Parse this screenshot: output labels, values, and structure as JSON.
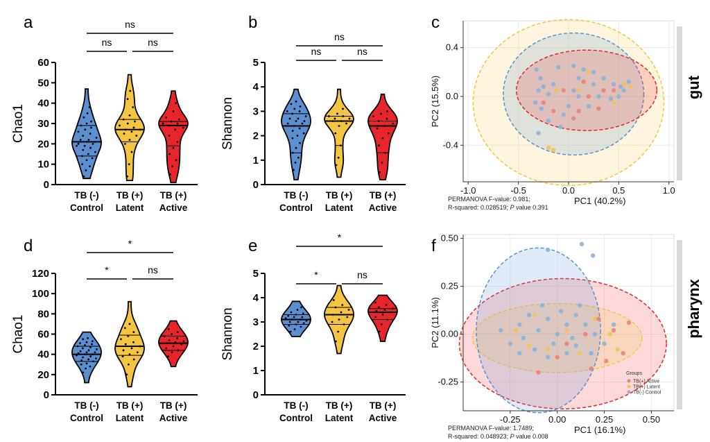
{
  "colors": {
    "control": "#5b8fd0",
    "latent": "#f4c542",
    "active": "#e8252a"
  },
  "chart_data": [
    {
      "panel": "a",
      "type": "violin",
      "ylabel": "Chao1",
      "ylim": [
        0,
        60
      ],
      "yticks": [
        "0",
        "10",
        "20",
        "30",
        "40",
        "50",
        "60"
      ],
      "categories": [
        {
          "line1": "TB (-)",
          "line2": "Control"
        },
        {
          "line1": "TB (+)",
          "line2": "Latent"
        },
        {
          "line1": "TB (+)",
          "line2": "Active"
        }
      ],
      "groups": [
        {
          "q1": 14,
          "median": 21,
          "q3": 29,
          "min": 3,
          "max": 47,
          "points": [
            4,
            7,
            9,
            10,
            12,
            13,
            14,
            15,
            16,
            17,
            18,
            19,
            19,
            20,
            20,
            21,
            21,
            22,
            22,
            23,
            24,
            25,
            26,
            27,
            28,
            29,
            30,
            31,
            33,
            35,
            38
          ]
        },
        {
          "q1": 21,
          "median": 27,
          "q3": 32,
          "min": 2,
          "max": 54,
          "points": [
            4,
            10,
            16,
            20,
            22,
            24,
            25,
            26,
            27,
            27,
            28,
            29,
            30,
            31,
            32,
            34,
            38,
            42,
            46
          ]
        },
        {
          "q1": 19,
          "median": 29,
          "q3": 31,
          "min": 1,
          "max": 46,
          "points": [
            5,
            9,
            12,
            15,
            18,
            21,
            24,
            27,
            28,
            29,
            30,
            30,
            31,
            32,
            33,
            36,
            40
          ]
        }
      ],
      "comparisons": [
        {
          "from": 0,
          "to": 1,
          "label": "ns",
          "level": 0
        },
        {
          "from": 1,
          "to": 2,
          "label": "ns",
          "level": 0
        },
        {
          "from": 0,
          "to": 2,
          "label": "ns",
          "level": 1
        }
      ]
    },
    {
      "panel": "b",
      "type": "violin",
      "ylabel": "Shannon",
      "ylim": [
        0,
        5
      ],
      "yticks": [
        "0",
        "1",
        "2",
        "3",
        "4",
        "5"
      ],
      "categories": [
        {
          "line1": "TB (-)",
          "line2": "Control"
        },
        {
          "line1": "TB (+)",
          "line2": "Latent"
        },
        {
          "line1": "TB (+)",
          "line2": "Active"
        }
      ],
      "groups": [
        {
          "q1": 1.3,
          "median": 2.4,
          "q3": 2.9,
          "min": 0.2,
          "max": 3.9,
          "points": [
            0.6,
            0.9,
            1.1,
            1.3,
            1.5,
            1.7,
            1.9,
            2.0,
            2.1,
            2.2,
            2.3,
            2.4,
            2.4,
            2.5,
            2.5,
            2.6,
            2.6,
            2.7,
            2.7,
            2.8,
            2.9,
            3.0,
            3.0,
            3.1,
            3.2,
            3.3,
            3.4
          ]
        },
        {
          "q1": 1.6,
          "median": 2.6,
          "q3": 2.8,
          "min": 0.3,
          "max": 3.9,
          "points": [
            0.8,
            1.1,
            1.6,
            2.1,
            2.4,
            2.5,
            2.6,
            2.6,
            2.7,
            2.7,
            2.8,
            2.8,
            2.9,
            3.1
          ]
        },
        {
          "q1": 1.3,
          "median": 2.4,
          "q3": 2.6,
          "min": 0.2,
          "max": 3.7,
          "points": [
            0.5,
            0.9,
            1.3,
            1.6,
            1.9,
            2.1,
            2.3,
            2.4,
            2.5,
            2.6,
            2.7,
            2.8,
            2.9,
            3.0
          ]
        }
      ],
      "comparisons": [
        {
          "from": 0,
          "to": 1,
          "label": "ns",
          "level": 0
        },
        {
          "from": 1,
          "to": 2,
          "label": "ns",
          "level": 0
        },
        {
          "from": 0,
          "to": 2,
          "label": "ns",
          "level": 1
        }
      ]
    },
    {
      "panel": "c",
      "type": "scatter",
      "xlabel": "PC1 (40.2%)",
      "ylabel": "PC2 (15.5%)",
      "xlim": [
        -1.05,
        1.05
      ],
      "ylim": [
        -0.7,
        0.62
      ],
      "xticks": [
        -1.0,
        -0.5,
        0.0,
        0.5,
        1.0
      ],
      "xtick_labels": [
        "-1.0",
        "-0.5",
        "0.0",
        "0.5",
        "1.0"
      ],
      "yticks": [
        -0.4,
        0.0,
        0.4
      ],
      "ytick_labels": [
        "-0.4",
        "0.0",
        "0.4"
      ],
      "side_label": "gut",
      "stats_line1": "PERMANOVA F-value: 0.981;",
      "stats_line2_pre": "R-squared: 0.028519; ",
      "stats_p": "P",
      "stats_line2_post": " value 0.391",
      "ellipses": [
        {
          "group": "latent",
          "cx": 0.0,
          "cy": -0.05,
          "rx": 0.95,
          "ry": 0.68
        },
        {
          "group": "control",
          "cx": 0.05,
          "cy": 0.02,
          "rx": 0.7,
          "ry": 0.5
        },
        {
          "group": "active",
          "cx": 0.18,
          "cy": 0.05,
          "rx": 0.7,
          "ry": 0.33
        }
      ],
      "points": {
        "control": [
          [
            -0.32,
            0.22
          ],
          [
            -0.28,
            0.15
          ],
          [
            -0.25,
            0.08
          ],
          [
            -0.3,
            0.05
          ],
          [
            -0.33,
            -0.05
          ],
          [
            -0.27,
            -0.1
          ],
          [
            -0.2,
            -0.2
          ],
          [
            -0.1,
            0.24
          ],
          [
            0.05,
            0.25
          ],
          [
            0.15,
            0.22
          ],
          [
            0.25,
            0.2
          ],
          [
            0.35,
            0.15
          ],
          [
            0.45,
            0.1
          ],
          [
            0.52,
            0.08
          ],
          [
            0.55,
            0.05
          ],
          [
            0.6,
            0.12
          ],
          [
            0.05,
            0.05
          ],
          [
            0.1,
            0.0
          ],
          [
            0.0,
            -0.08
          ],
          [
            -0.05,
            -0.15
          ],
          [
            0.2,
            -0.08
          ],
          [
            0.3,
            0.0
          ],
          [
            0.42,
            -0.02
          ],
          [
            -0.15,
            0.1
          ],
          [
            -0.2,
            0.02
          ],
          [
            0.1,
            0.15
          ],
          [
            -0.08,
            -0.25
          ],
          [
            -0.3,
            -0.3
          ],
          [
            0.25,
            0.1
          ],
          [
            0.5,
            0.0
          ]
        ],
        "latent": [
          [
            -0.2,
            -0.42
          ],
          [
            -0.15,
            -0.44
          ],
          [
            -0.12,
            0.05
          ],
          [
            0.1,
            0.05
          ],
          [
            0.55,
            0.1
          ],
          [
            0.45,
            -0.05
          ],
          [
            0.2,
            0.2
          ],
          [
            0.62,
            0.08
          ]
        ],
        "active": [
          [
            -0.25,
            -0.05
          ],
          [
            0.1,
            -0.12
          ],
          [
            -0.05,
            0.05
          ],
          [
            0.2,
            0.0
          ],
          [
            0.3,
            -0.1
          ],
          [
            0.15,
            0.12
          ],
          [
            -0.15,
            -0.12
          ],
          [
            0.05,
            -0.18
          ],
          [
            0.45,
            0.05
          ],
          [
            0.35,
            0.05
          ]
        ]
      }
    },
    {
      "panel": "d",
      "type": "violin",
      "ylabel": "Chao1",
      "ylim": [
        0,
        120
      ],
      "yticks": [
        "0",
        "20",
        "40",
        "60",
        "80",
        "100",
        "120"
      ],
      "categories": [
        {
          "line1": "TB (-)",
          "line2": "Control"
        },
        {
          "line1": "TB (+)",
          "line2": "Latent"
        },
        {
          "line1": "TB (+)",
          "line2": "Active"
        }
      ],
      "groups": [
        {
          "q1": 33,
          "median": 40,
          "q3": 48,
          "min": 12,
          "max": 62,
          "points": [
            22,
            26,
            28,
            30,
            31,
            33,
            34,
            35,
            36,
            37,
            38,
            39,
            40,
            40,
            41,
            42,
            42,
            43,
            44,
            45,
            46,
            47,
            48,
            49,
            50,
            51,
            52,
            53,
            55,
            56
          ]
        },
        {
          "q1": 39,
          "median": 48,
          "q3": 59,
          "min": 8,
          "max": 92,
          "points": [
            20,
            30,
            35,
            38,
            40,
            42,
            44,
            46,
            48,
            50,
            52,
            55,
            58,
            62,
            66,
            70
          ]
        },
        {
          "q1": 44,
          "median": 51,
          "q3": 58,
          "min": 28,
          "max": 73,
          "points": [
            38,
            42,
            44,
            46,
            48,
            50,
            51,
            52,
            53,
            54,
            56,
            58,
            60,
            62,
            65
          ]
        }
      ],
      "comparisons": [
        {
          "from": 0,
          "to": 1,
          "label": "*",
          "level": 0
        },
        {
          "from": 1,
          "to": 2,
          "label": "ns",
          "level": 0
        },
        {
          "from": 0,
          "to": 2,
          "label": "*",
          "level": 1
        }
      ]
    },
    {
      "panel": "e",
      "type": "violin",
      "ylabel": "Shannon",
      "ylim": [
        0,
        5
      ],
      "yticks": [
        "0",
        "1",
        "2",
        "3",
        "4",
        "5"
      ],
      "categories": [
        {
          "line1": "TB (-)",
          "line2": "Control"
        },
        {
          "line1": "TB (+)",
          "line2": "Latent"
        },
        {
          "line1": "TB (+)",
          "line2": "Active"
        }
      ],
      "groups": [
        {
          "q1": 2.9,
          "median": 3.1,
          "q3": 3.3,
          "min": 2.4,
          "max": 3.85,
          "points": [
            2.6,
            2.7,
            2.8,
            2.85,
            2.9,
            2.95,
            3.0,
            3.0,
            3.05,
            3.1,
            3.1,
            3.15,
            3.2,
            3.2,
            3.25,
            3.3,
            3.35,
            3.4,
            3.5,
            3.6
          ]
        },
        {
          "q1": 2.9,
          "median": 3.3,
          "q3": 3.6,
          "min": 1.7,
          "max": 4.5,
          "points": [
            2.2,
            2.6,
            2.9,
            3.0,
            3.1,
            3.2,
            3.3,
            3.4,
            3.5,
            3.6,
            3.7,
            3.9
          ]
        },
        {
          "q1": 3.1,
          "median": 3.4,
          "q3": 3.55,
          "min": 2.2,
          "max": 4.1,
          "points": [
            2.6,
            2.9,
            3.1,
            3.2,
            3.3,
            3.4,
            3.45,
            3.5,
            3.55,
            3.6,
            3.7,
            3.8
          ]
        }
      ],
      "comparisons": [
        {
          "from": 0,
          "to": 1,
          "label": "*",
          "level": 0
        },
        {
          "from": 1,
          "to": 2,
          "label": "ns",
          "level": 0
        },
        {
          "from": 0,
          "to": 2,
          "label": "*",
          "level": 1
        }
      ]
    },
    {
      "panel": "f",
      "type": "scatter",
      "xlabel": "PC1 (16.1%)",
      "ylabel": "PC2  (11.1%)",
      "xlim": [
        -0.5,
        0.62
      ],
      "ylim": [
        -0.4,
        0.52
      ],
      "xticks": [
        -0.25,
        0.0,
        0.25,
        0.5
      ],
      "xtick_labels": [
        "-0.25",
        "0.00",
        "0.25",
        "0.50"
      ],
      "yticks": [
        -0.25,
        0.0,
        0.25,
        0.5
      ],
      "ytick_labels": [
        "-0.25",
        "0.00",
        "0.25",
        "0.50"
      ],
      "side_label": "pharynx",
      "stats_line1": "PERMANOVA F-value: 1.7489;",
      "stats_line2_pre": "R-squared: 0.048923; ",
      "stats_p": "P",
      "stats_line2_post": " value 0.008",
      "legend_title": "Groups",
      "legend": [
        {
          "group": "active",
          "label": "TB(+) Active"
        },
        {
          "group": "latent",
          "label": "TB(+) Latent"
        },
        {
          "group": "control",
          "label": "TB(-) Control"
        }
      ],
      "ellipses": [
        {
          "group": "active",
          "cx": 0.03,
          "cy": -0.05,
          "rx": 0.55,
          "ry": 0.34
        },
        {
          "group": "latent",
          "cx": 0.0,
          "cy": -0.02,
          "rx": 0.45,
          "ry": 0.18
        },
        {
          "group": "control",
          "cx": -0.1,
          "cy": 0.02,
          "rx": 0.33,
          "ry": 0.43
        }
      ],
      "points": {
        "control": [
          [
            -0.05,
            0.44
          ],
          [
            0.13,
            0.47
          ],
          [
            0.19,
            0.41
          ],
          [
            -0.2,
            0.05
          ],
          [
            -0.15,
            0.1
          ],
          [
            -0.1,
            0.02
          ],
          [
            -0.05,
            0.08
          ],
          [
            0.0,
            0.0
          ],
          [
            0.05,
            0.05
          ],
          [
            0.1,
            0.1
          ],
          [
            0.15,
            0.05
          ],
          [
            0.2,
            0.0
          ],
          [
            0.25,
            -0.05
          ],
          [
            -0.25,
            -0.05
          ],
          [
            -0.2,
            -0.1
          ],
          [
            -0.12,
            -0.08
          ],
          [
            -0.05,
            -0.12
          ],
          [
            0.05,
            -0.1
          ],
          [
            0.1,
            -0.06
          ],
          [
            0.18,
            -0.1
          ],
          [
            -0.3,
            0.02
          ],
          [
            -0.08,
            0.15
          ],
          [
            0.02,
            0.12
          ],
          [
            0.12,
            0.15
          ],
          [
            -0.18,
            -0.02
          ],
          [
            0.3,
            0.05
          ],
          [
            -0.02,
            -0.05
          ],
          [
            0.08,
            -0.02
          ]
        ],
        "latent": [
          [
            -0.22,
            0.02
          ],
          [
            -0.12,
            0.1
          ],
          [
            0.05,
            0.02
          ],
          [
            0.2,
            0.08
          ],
          [
            0.28,
            0.0
          ],
          [
            -0.05,
            -0.08
          ],
          [
            0.12,
            -0.1
          ],
          [
            0.32,
            -0.08
          ],
          [
            -0.15,
            -0.06
          ]
        ],
        "active": [
          [
            0.22,
            0.08
          ],
          [
            -0.1,
            -0.2
          ],
          [
            0.18,
            -0.18
          ],
          [
            0.05,
            -0.05
          ],
          [
            0.3,
            0.02
          ],
          [
            0.35,
            -0.1
          ],
          [
            0.0,
            -0.12
          ],
          [
            0.15,
            0.0
          ],
          [
            0.38,
            0.06
          ],
          [
            0.26,
            -0.14
          ]
        ]
      }
    }
  ]
}
